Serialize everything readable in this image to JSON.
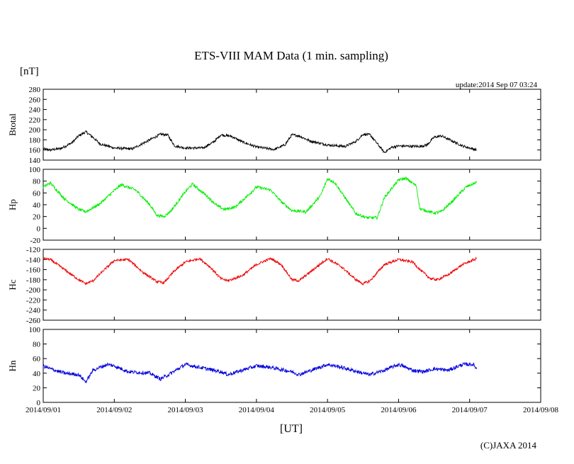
{
  "chart_data": {
    "type": "line",
    "title": "ETS-VIII MAM Data (1 min. sampling)",
    "unit_label": "[nT]",
    "update_text": "update:2014 Sep 07 03:24",
    "xlabel": "[UT]",
    "copyright": "(C)JAXA 2014",
    "x_ticks": [
      "2014/09/01",
      "2014/09/02",
      "2014/09/03",
      "2014/09/04",
      "2014/09/05",
      "2014/09/06",
      "2014/09/07",
      "2014/09/08"
    ],
    "x_range_days": [
      0,
      7
    ],
    "grid": false,
    "panels": [
      {
        "name": "Btotal",
        "color": "#000000",
        "ylim": [
          140,
          280
        ],
        "y_ticks": [
          "280",
          "260",
          "240",
          "220",
          "200",
          "180",
          "160",
          "140"
        ],
        "noise": 2.5,
        "points": [
          [
            0.0,
            162
          ],
          [
            0.1,
            160
          ],
          [
            0.25,
            163
          ],
          [
            0.4,
            174
          ],
          [
            0.5,
            188
          ],
          [
            0.6,
            196
          ],
          [
            0.7,
            185
          ],
          [
            0.8,
            172
          ],
          [
            1.0,
            164
          ],
          [
            1.25,
            162
          ],
          [
            1.5,
            180
          ],
          [
            1.65,
            191
          ],
          [
            1.75,
            190
          ],
          [
            1.85,
            168
          ],
          [
            2.0,
            164
          ],
          [
            2.25,
            164
          ],
          [
            2.4,
            176
          ],
          [
            2.5,
            190
          ],
          [
            2.65,
            187
          ],
          [
            2.8,
            176
          ],
          [
            3.0,
            166
          ],
          [
            3.25,
            161
          ],
          [
            3.4,
            170
          ],
          [
            3.5,
            190
          ],
          [
            3.6,
            188
          ],
          [
            3.75,
            178
          ],
          [
            4.0,
            170
          ],
          [
            4.25,
            167
          ],
          [
            4.4,
            177
          ],
          [
            4.5,
            191
          ],
          [
            4.6,
            190
          ],
          [
            4.8,
            155
          ],
          [
            4.9,
            165
          ],
          [
            5.0,
            168
          ],
          [
            5.3,
            167
          ],
          [
            5.4,
            170
          ],
          [
            5.5,
            185
          ],
          [
            5.6,
            188
          ],
          [
            5.75,
            178
          ],
          [
            5.9,
            168
          ],
          [
            6.1,
            160
          ]
        ]
      },
      {
        "name": "Hp",
        "color": "#00ee00",
        "ylim": [
          -20,
          100
        ],
        "y_ticks": [
          "100",
          "80",
          "60",
          "40",
          "20",
          "0",
          "-20"
        ],
        "noise": 2.5,
        "points": [
          [
            0.0,
            70
          ],
          [
            0.1,
            77
          ],
          [
            0.3,
            50
          ],
          [
            0.5,
            32
          ],
          [
            0.6,
            28
          ],
          [
            0.8,
            42
          ],
          [
            1.0,
            64
          ],
          [
            1.1,
            74
          ],
          [
            1.3,
            65
          ],
          [
            1.5,
            40
          ],
          [
            1.6,
            22
          ],
          [
            1.7,
            20
          ],
          [
            1.8,
            30
          ],
          [
            2.0,
            62
          ],
          [
            2.1,
            75
          ],
          [
            2.3,
            55
          ],
          [
            2.45,
            38
          ],
          [
            2.55,
            32
          ],
          [
            2.7,
            36
          ],
          [
            2.9,
            58
          ],
          [
            3.0,
            70
          ],
          [
            3.2,
            65
          ],
          [
            3.35,
            45
          ],
          [
            3.5,
            30
          ],
          [
            3.7,
            28
          ],
          [
            3.9,
            55
          ],
          [
            4.0,
            84
          ],
          [
            4.1,
            78
          ],
          [
            4.4,
            25
          ],
          [
            4.55,
            18
          ],
          [
            4.7,
            18
          ],
          [
            4.8,
            52
          ],
          [
            5.0,
            82
          ],
          [
            5.1,
            85
          ],
          [
            5.25,
            72
          ],
          [
            5.3,
            33
          ],
          [
            5.5,
            26
          ],
          [
            5.6,
            28
          ],
          [
            5.75,
            45
          ],
          [
            5.95,
            70
          ],
          [
            6.1,
            78
          ]
        ]
      },
      {
        "name": "Hc",
        "color": "#ee0000",
        "ylim": [
          -260,
          -120
        ],
        "y_ticks": [
          "-120",
          "-140",
          "-160",
          "-180",
          "-200",
          "-220",
          "-240",
          "-260"
        ],
        "noise": 2.5,
        "points": [
          [
            0.0,
            -138
          ],
          [
            0.1,
            -140
          ],
          [
            0.3,
            -160
          ],
          [
            0.5,
            -180
          ],
          [
            0.6,
            -188
          ],
          [
            0.7,
            -182
          ],
          [
            0.9,
            -155
          ],
          [
            1.0,
            -142
          ],
          [
            1.2,
            -140
          ],
          [
            1.4,
            -165
          ],
          [
            1.6,
            -184
          ],
          [
            1.7,
            -186
          ],
          [
            1.85,
            -162
          ],
          [
            2.0,
            -145
          ],
          [
            2.2,
            -138
          ],
          [
            2.35,
            -155
          ],
          [
            2.5,
            -178
          ],
          [
            2.6,
            -182
          ],
          [
            2.8,
            -172
          ],
          [
            3.0,
            -150
          ],
          [
            3.2,
            -138
          ],
          [
            3.35,
            -150
          ],
          [
            3.5,
            -180
          ],
          [
            3.6,
            -182
          ],
          [
            3.8,
            -160
          ],
          [
            4.0,
            -138
          ],
          [
            4.2,
            -155
          ],
          [
            4.4,
            -180
          ],
          [
            4.5,
            -188
          ],
          [
            4.6,
            -182
          ],
          [
            4.8,
            -150
          ],
          [
            5.0,
            -140
          ],
          [
            5.2,
            -145
          ],
          [
            5.3,
            -160
          ],
          [
            5.45,
            -178
          ],
          [
            5.55,
            -180
          ],
          [
            5.7,
            -170
          ],
          [
            5.9,
            -150
          ],
          [
            6.1,
            -138
          ]
        ]
      },
      {
        "name": "Hn",
        "color": "#0000dd",
        "ylim": [
          0,
          100
        ],
        "y_ticks": [
          "100",
          "80",
          "60",
          "40",
          "20",
          "0"
        ],
        "noise": 2.5,
        "points": [
          [
            0.0,
            50
          ],
          [
            0.1,
            46
          ],
          [
            0.3,
            40
          ],
          [
            0.5,
            38
          ],
          [
            0.6,
            28
          ],
          [
            0.7,
            44
          ],
          [
            0.9,
            52
          ],
          [
            1.0,
            50
          ],
          [
            1.2,
            42
          ],
          [
            1.5,
            40
          ],
          [
            1.65,
            32
          ],
          [
            1.8,
            40
          ],
          [
            2.0,
            52
          ],
          [
            2.2,
            48
          ],
          [
            2.5,
            42
          ],
          [
            2.6,
            38
          ],
          [
            2.8,
            44
          ],
          [
            3.0,
            50
          ],
          [
            3.2,
            48
          ],
          [
            3.5,
            42
          ],
          [
            3.6,
            38
          ],
          [
            3.8,
            45
          ],
          [
            4.0,
            52
          ],
          [
            4.2,
            48
          ],
          [
            4.5,
            40
          ],
          [
            4.6,
            38
          ],
          [
            4.8,
            44
          ],
          [
            5.0,
            52
          ],
          [
            5.2,
            44
          ],
          [
            5.35,
            42
          ],
          [
            5.5,
            46
          ],
          [
            5.7,
            44
          ],
          [
            5.9,
            52
          ],
          [
            6.05,
            52
          ],
          [
            6.1,
            46
          ]
        ]
      }
    ]
  }
}
